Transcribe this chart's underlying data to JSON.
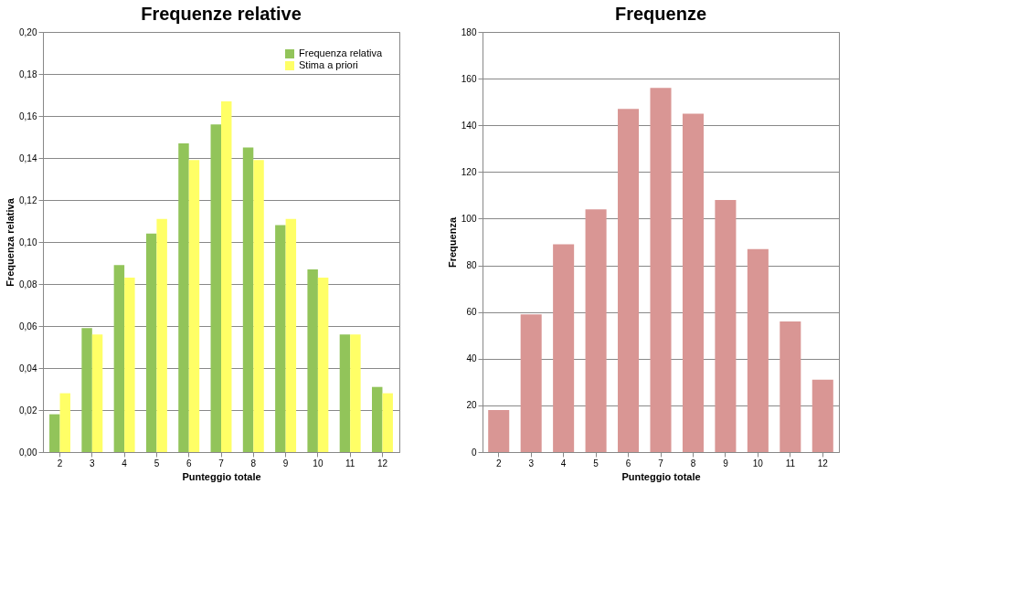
{
  "chart_data": [
    {
      "type": "bar",
      "title": "Frequenze relative",
      "xlabel": "Punteggio totale",
      "ylabel": "Frequenza relativa",
      "categories": [
        "2",
        "3",
        "4",
        "5",
        "6",
        "7",
        "8",
        "9",
        "10",
        "11",
        "12"
      ],
      "series": [
        {
          "name": "Frequenza relativa",
          "color": "#92c45a",
          "values": [
            0.018,
            0.059,
            0.089,
            0.104,
            0.147,
            0.156,
            0.145,
            0.108,
            0.087,
            0.056,
            0.031
          ]
        },
        {
          "name": "Stima a priori",
          "color": "#ffff66",
          "values": [
            0.028,
            0.056,
            0.083,
            0.111,
            0.139,
            0.167,
            0.139,
            0.111,
            0.083,
            0.056,
            0.028
          ]
        }
      ],
      "ylim": [
        0,
        0.2
      ],
      "yticks": [
        {
          "value": 0,
          "label": "0,00"
        },
        {
          "value": 0.02,
          "label": "0,02"
        },
        {
          "value": 0.04,
          "label": "0,04"
        },
        {
          "value": 0.06,
          "label": "0,06"
        },
        {
          "value": 0.08,
          "label": "0,08"
        },
        {
          "value": 0.1,
          "label": "0,10"
        },
        {
          "value": 0.12,
          "label": "0,12"
        },
        {
          "value": 0.14,
          "label": "0,14"
        },
        {
          "value": 0.16,
          "label": "0,16"
        },
        {
          "value": 0.18,
          "label": "0,18"
        },
        {
          "value": 0.2,
          "label": "0,20"
        }
      ],
      "grid": "y",
      "legend": "top right"
    },
    {
      "type": "bar",
      "title": "Frequenze",
      "xlabel": "Punteggio totale",
      "ylabel": "Frequenza",
      "categories": [
        "2",
        "3",
        "4",
        "5",
        "6",
        "7",
        "8",
        "9",
        "10",
        "11",
        "12"
      ],
      "series": [
        {
          "color": "#d99694",
          "values": [
            18,
            59,
            89,
            104,
            147,
            156,
            145,
            108,
            87,
            56,
            31
          ]
        }
      ],
      "ylim": [
        0,
        180
      ],
      "yticks": [
        0,
        20,
        40,
        60,
        80,
        100,
        120,
        140,
        160,
        180
      ],
      "grid": "y"
    }
  ]
}
